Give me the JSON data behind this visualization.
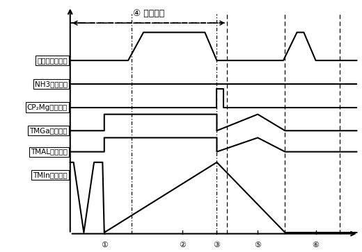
{
  "title": "④ 周期循环",
  "labels": [
    "反应室温度趋势",
    "NH3流量趋势",
    "CP₂Mg流量趋势",
    "TMGa流量趋势",
    "TMAL流量趋势",
    "TMIn流量趋势"
  ],
  "background": "#ffffff",
  "line_color": "#000000"
}
